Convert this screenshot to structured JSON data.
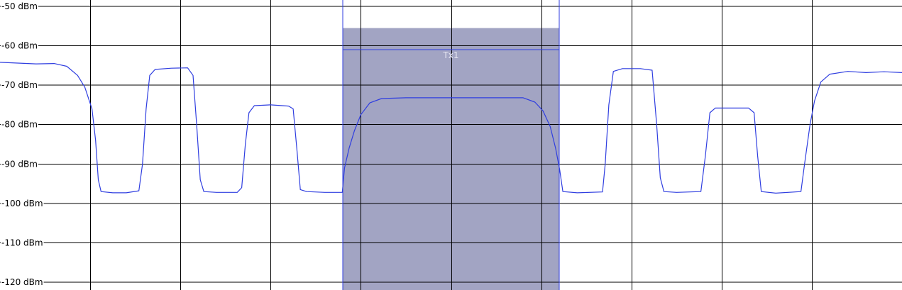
{
  "chart_data": {
    "type": "line",
    "title": "",
    "xlabel": "",
    "ylabel": "",
    "y_unit": "dBm",
    "ylim": [
      -120,
      -50
    ],
    "y_ticks": [
      -50,
      -60,
      -70,
      -80,
      -90,
      -100,
      -110,
      -120
    ],
    "y_tick_labels": [
      "-50 dBm",
      "-60 dBm",
      "-70 dBm",
      "-80 dBm",
      "-90 dBm",
      "-100 dBm",
      "-110 dBm",
      "-120 dBm"
    ],
    "grid": true,
    "x_grid_divisions": 10,
    "xlim": [
      0,
      100
    ],
    "channel": {
      "label": "Tx1",
      "x_start": 38.0,
      "x_end": 62.0,
      "power_bar_top_dbm": -55.5,
      "power_level_dbm": -61,
      "shade_color": "#a2a4c3",
      "line_color": "#2f3ee0"
    },
    "series": [
      {
        "color": "#2f3ee0",
        "points": [
          [
            0,
            -64.2
          ],
          [
            2,
            -64.4
          ],
          [
            4,
            -64.6
          ],
          [
            6,
            -64.5
          ],
          [
            7.4,
            -65.2
          ],
          [
            8.6,
            -67.5
          ],
          [
            9.4,
            -70.5
          ],
          [
            10.2,
            -76
          ],
          [
            10.6,
            -84
          ],
          [
            10.9,
            -94
          ],
          [
            11.2,
            -97.0
          ],
          [
            12.5,
            -97.3
          ],
          [
            14,
            -97.3
          ],
          [
            15.4,
            -96.8
          ],
          [
            15.8,
            -90
          ],
          [
            16.2,
            -76
          ],
          [
            16.6,
            -67.5
          ],
          [
            17.2,
            -66.0
          ],
          [
            19,
            -65.7
          ],
          [
            20.8,
            -65.6
          ],
          [
            21.4,
            -67.5
          ],
          [
            21.8,
            -80
          ],
          [
            22.2,
            -94
          ],
          [
            22.6,
            -97.0
          ],
          [
            24,
            -97.2
          ],
          [
            26.3,
            -97.2
          ],
          [
            26.8,
            -96
          ],
          [
            27.2,
            -85
          ],
          [
            27.6,
            -77
          ],
          [
            28.2,
            -75.2
          ],
          [
            30,
            -75.0
          ],
          [
            32,
            -75.3
          ],
          [
            32.5,
            -76
          ],
          [
            32.9,
            -86
          ],
          [
            33.3,
            -96.5
          ],
          [
            34,
            -97.0
          ],
          [
            36,
            -97.2
          ],
          [
            37.95,
            -97.2
          ],
          [
            38.2,
            -91
          ],
          [
            38.7,
            -86
          ],
          [
            39.3,
            -81.5
          ],
          [
            40,
            -77.5
          ],
          [
            41,
            -74.5
          ],
          [
            42.3,
            -73.4
          ],
          [
            45,
            -73.2
          ],
          [
            50,
            -73.2
          ],
          [
            55,
            -73.2
          ],
          [
            58,
            -73.2
          ],
          [
            59.3,
            -74.3
          ],
          [
            60.2,
            -76.5
          ],
          [
            61,
            -80.5
          ],
          [
            61.6,
            -86
          ],
          [
            62.05,
            -91.5
          ],
          [
            62.4,
            -97.0
          ],
          [
            64,
            -97.3
          ],
          [
            66.8,
            -97.1
          ],
          [
            67.1,
            -90
          ],
          [
            67.5,
            -75
          ],
          [
            68.0,
            -66.5
          ],
          [
            69,
            -65.8
          ],
          [
            71,
            -65.8
          ],
          [
            72.3,
            -66.2
          ],
          [
            72.8,
            -80
          ],
          [
            73.2,
            -93.5
          ],
          [
            73.6,
            -97.0
          ],
          [
            75,
            -97.2
          ],
          [
            77.7,
            -97.0
          ],
          [
            78.2,
            -88
          ],
          [
            78.7,
            -77
          ],
          [
            79.3,
            -75.8
          ],
          [
            81,
            -75.8
          ],
          [
            83,
            -75.8
          ],
          [
            83.6,
            -77
          ],
          [
            84.0,
            -88
          ],
          [
            84.4,
            -97.0
          ],
          [
            86,
            -97.4
          ],
          [
            88.8,
            -97.0
          ],
          [
            89.2,
            -90
          ],
          [
            89.8,
            -80
          ],
          [
            90.3,
            -74
          ],
          [
            91,
            -69.2
          ],
          [
            92,
            -67.2
          ],
          [
            94,
            -66.5
          ],
          [
            96,
            -66.8
          ],
          [
            98,
            -66.6
          ],
          [
            100,
            -66.8
          ]
        ]
      }
    ]
  }
}
